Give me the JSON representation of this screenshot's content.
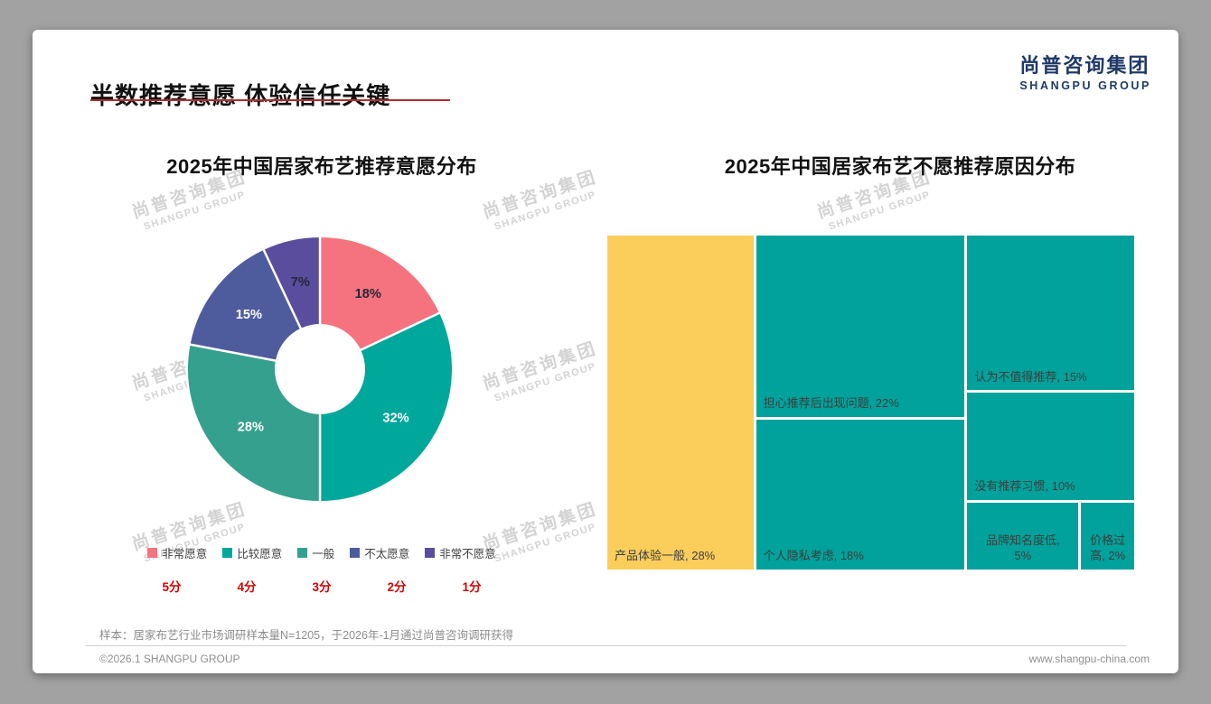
{
  "page": {
    "title": "半数推荐意愿 体验信任关键",
    "logo": {
      "cn": "尚普咨询集团",
      "en": "SHANGPU GROUP"
    },
    "watermark": {
      "cn": "尚普咨询集团",
      "en": "SHANGPU GROUP"
    },
    "footnote": "样本：居家布艺行业市场调研样本量N=1205，于2026年-1月通过尚普咨询调研获得",
    "footer": {
      "copyright": "©2026.1 SHANGPU GROUP",
      "website": "www.shangpu-china.com"
    },
    "colors": {
      "accent_red": "#b62a2e",
      "score_red": "#d40000",
      "logo_navy": "#1f3966",
      "background_gray": "#a2a2a2"
    }
  },
  "chart_data": [
    {
      "type": "pie",
      "subtype": "donut",
      "title": "2025年中国居家布艺推荐意愿分布",
      "categories": [
        "非常愿意",
        "比较愿意",
        "一般",
        "不太愿意",
        "非常不愿意"
      ],
      "values": [
        18,
        32,
        28,
        15,
        7
      ],
      "unit": "%",
      "colors": [
        "#F5737E",
        "#00A79B",
        "#35A08D",
        "#4E5C9D",
        "#5A4D9D"
      ],
      "slice_label_colors": [
        "#23283a",
        "#ffffff",
        "#ffffff",
        "#ffffff",
        "#23283a"
      ],
      "score_labels": [
        "5分",
        "4分",
        "3分",
        "2分",
        "1分"
      ],
      "legend_position": "bottom",
      "start_angle_deg": 0,
      "clockwise": true
    },
    {
      "type": "treemap",
      "title": "2025年中国居家布艺不愿推荐原因分布",
      "label_format": "{label}, {value}%",
      "cells": [
        {
          "label": "产品体验一般",
          "value": 28,
          "color": "#FBCD5B"
        },
        {
          "label": "担心推荐后出现问题",
          "value": 22,
          "color": "#00A29B"
        },
        {
          "label": "个人隐私考虑",
          "value": 18,
          "color": "#00A29B"
        },
        {
          "label": "认为不值得推荐",
          "value": 15,
          "color": "#00A29B"
        },
        {
          "label": "没有推荐习惯",
          "value": 10,
          "color": "#00A29B"
        },
        {
          "label": "品牌知名度低",
          "value": 5,
          "color": "#00A29B"
        },
        {
          "label": "价格过高",
          "value": 2,
          "color": "#00A29B"
        }
      ],
      "layout": {
        "columns": [
          {
            "cells": [
              0
            ]
          },
          {
            "cells": [
              1,
              2
            ]
          },
          {
            "cells": [
              3,
              4
            ],
            "bottom_row": [
              5,
              6
            ]
          }
        ]
      }
    }
  ]
}
